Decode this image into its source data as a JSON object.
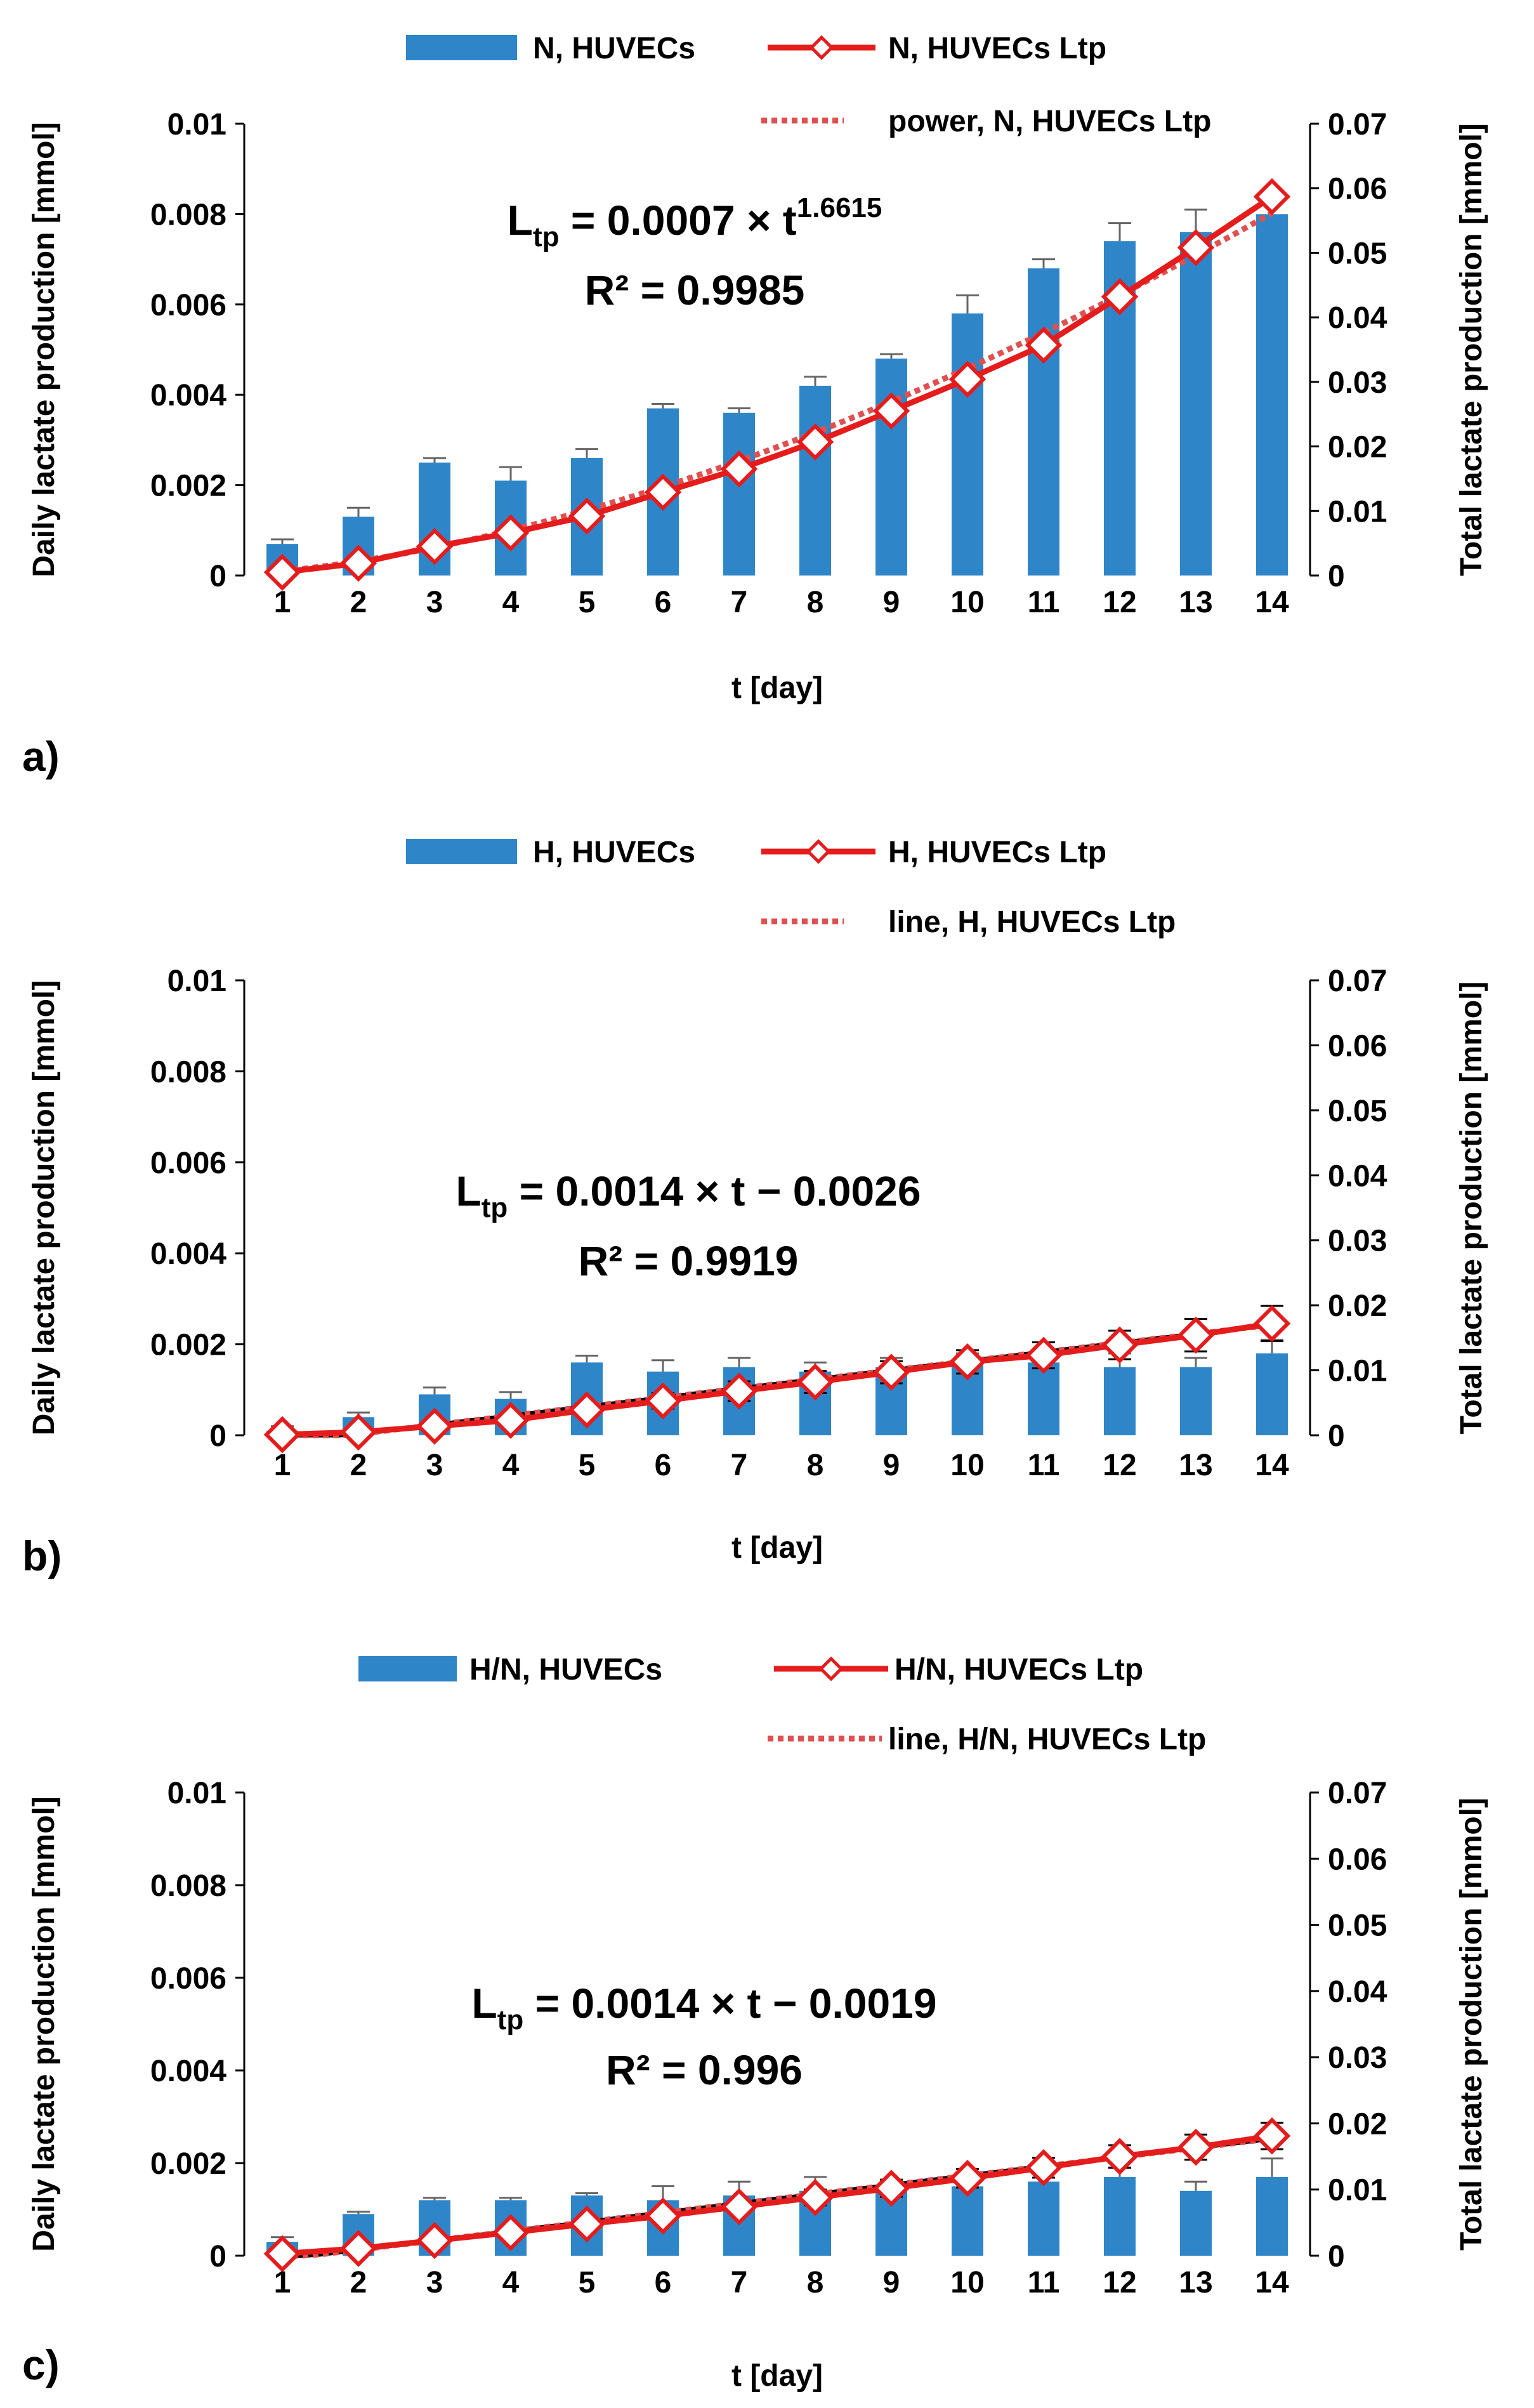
{
  "figure": {
    "panels": [
      {
        "panel_label": "a)",
        "chart_data": {
          "type": "bar",
          "title": "",
          "xlabel": "t [day]",
          "ylabel_left": "Daily lactate production [mmol]",
          "ylabel_right": "Total lactate production [mmol]",
          "categories": [
            "1",
            "2",
            "3",
            "4",
            "5",
            "6",
            "7",
            "8",
            "9",
            "10",
            "11",
            "12",
            "13",
            "14"
          ],
          "ylim_left": [
            0,
            0.01
          ],
          "yticks_left": [
            "0",
            "0.002",
            "0.004",
            "0.006",
            "0.008",
            "0.01"
          ],
          "ylim_right": [
            0,
            0.07
          ],
          "yticks_right": [
            "0",
            "0.01",
            "0.02",
            "0.03",
            "0.04",
            "0.05",
            "0.06",
            "0.07"
          ],
          "grid": false,
          "legend_position": "top",
          "series": [
            {
              "name": "N, HUVECs",
              "kind": "bar",
              "axis": "left",
              "color": "#2e86c8",
              "values": [
                0.0007,
                0.0013,
                0.0025,
                0.0021,
                0.0026,
                0.0037,
                0.0036,
                0.0042,
                0.0048,
                0.0058,
                0.0068,
                0.0074,
                0.0076,
                0.008
              ],
              "errors": [
                0.0001,
                0.0002,
                0.0001,
                0.0003,
                0.0002,
                0.0001,
                0.0001,
                0.0002,
                0.0001,
                0.0004,
                0.0002,
                0.0004,
                0.0005,
                0.0003
              ]
            },
            {
              "name": "N, HUVECs Ltp",
              "kind": "line",
              "axis": "right",
              "color": "#e51c1c",
              "values": [
                0.0005,
                0.0019,
                0.0045,
                0.0066,
                0.0092,
                0.0129,
                0.0165,
                0.0207,
                0.0255,
                0.0304,
                0.0357,
                0.0432,
                0.0508,
                0.0587
              ],
              "errors": [
                0,
                0,
                0,
                0,
                0,
                0,
                0,
                0,
                0,
                0,
                0,
                0,
                0,
                0
              ]
            },
            {
              "name": "power, N, HUVECs Ltp",
              "kind": "trend",
              "axis": "right",
              "color": "#e05050",
              "trend": {
                "type": "power",
                "a": 0.0007,
                "b": 1.6615
              }
            }
          ],
          "annotation": {
            "lhs": "L",
            "lhs_sub": "tp",
            "expr": " = 0.0007 × t",
            "expr_sup": "1.6615",
            "r2": "R² = 0.9985"
          }
        }
      },
      {
        "panel_label": "b)",
        "chart_data": {
          "type": "bar",
          "title": "",
          "xlabel": "t [day]",
          "ylabel_left": "Daily lactate production [mmol]",
          "ylabel_right": "Total lactate production [mmol]",
          "categories": [
            "1",
            "2",
            "3",
            "4",
            "5",
            "6",
            "7",
            "8",
            "9",
            "10",
            "11",
            "12",
            "13",
            "14"
          ],
          "ylim_left": [
            0,
            0.01
          ],
          "yticks_left": [
            "0",
            "0.002",
            "0.004",
            "0.006",
            "0.008",
            "0.01"
          ],
          "ylim_right": [
            0,
            0.07
          ],
          "yticks_right": [
            "0",
            "0.01",
            "0.02",
            "0.03",
            "0.04",
            "0.05",
            "0.06",
            "0.07"
          ],
          "grid": false,
          "legend_position": "top",
          "series": [
            {
              "name": "H, HUVECs",
              "kind": "bar",
              "axis": "left",
              "color": "#2e86c8",
              "values": [
                0.0001,
                0.0004,
                0.0009,
                0.0008,
                0.0016,
                0.0014,
                0.0015,
                0.0014,
                0.0015,
                0.0016,
                0.0016,
                0.0015,
                0.0015,
                0.0018
              ],
              "errors": [
                0.0001,
                0.0001,
                0.00015,
                0.00015,
                0.00015,
                0.00025,
                0.0002,
                0.0002,
                0.0002,
                0.0002,
                0.00015,
                0.0003,
                0.0002,
                0.0003
              ]
            },
            {
              "name": "H, HUVECs Ltp",
              "kind": "line",
              "axis": "right",
              "color": "#e51c1c",
              "values": [
                0.0001,
                0.0005,
                0.0014,
                0.0023,
                0.0039,
                0.0053,
                0.0068,
                0.0082,
                0.0097,
                0.0113,
                0.0123,
                0.0139,
                0.0154,
                0.0172
              ],
              "errors": [
                0.0001,
                0.0003,
                0.0006,
                0.0008,
                0.001,
                0.0012,
                0.0015,
                0.0017,
                0.0017,
                0.0018,
                0.002,
                0.0022,
                0.0025,
                0.0027
              ]
            },
            {
              "name": "line, H, HUVECs Ltp",
              "kind": "trend",
              "axis": "right",
              "color": "#e05050",
              "trend": {
                "type": "linear",
                "a": 0.0014,
                "b": -0.0026
              }
            }
          ],
          "annotation": {
            "lhs": "L",
            "lhs_sub": "tp",
            "expr": "  = 0.0014 × t − 0.0026",
            "expr_sup": "",
            "r2": "R² = 0.9919"
          }
        }
      },
      {
        "panel_label": "c)",
        "chart_data": {
          "type": "bar",
          "title": "",
          "xlabel": "t [day]",
          "ylabel_left": "Daily lactate production [mmol]",
          "ylabel_right": "Total lactate production [mmol]",
          "categories": [
            "1",
            "2",
            "3",
            "4",
            "5",
            "6",
            "7",
            "8",
            "9",
            "10",
            "11",
            "12",
            "13",
            "14"
          ],
          "ylim_left": [
            0,
            0.01
          ],
          "yticks_left": [
            "0",
            "0.002",
            "0.004",
            "0.006",
            "0.008",
            "0.01"
          ],
          "ylim_right": [
            0,
            0.07
          ],
          "yticks_right": [
            "0",
            "0.01",
            "0.02",
            "0.03",
            "0.04",
            "0.05",
            "0.06",
            "0.07"
          ],
          "grid": false,
          "legend_position": "top",
          "series": [
            {
              "name": "H/N, HUVECs",
              "kind": "bar",
              "axis": "left",
              "color": "#2e86c8",
              "values": [
                0.0003,
                0.0009,
                0.0012,
                0.0012,
                0.0013,
                0.0012,
                0.0013,
                0.0014,
                0.0014,
                0.0015,
                0.0016,
                0.0017,
                0.0014,
                0.0017
              ],
              "errors": [
                0.0001,
                5e-05,
                5e-05,
                5e-05,
                5e-05,
                0.0003,
                0.0003,
                0.0003,
                0.0002,
                0.0002,
                0.0002,
                0.0002,
                0.0002,
                0.0004
              ]
            },
            {
              "name": "H/N, HUVECs Ltp",
              "kind": "line",
              "axis": "right",
              "color": "#e51c1c",
              "values": [
                0.0003,
                0.0011,
                0.0023,
                0.0035,
                0.0048,
                0.006,
                0.0074,
                0.0088,
                0.0102,
                0.0117,
                0.0133,
                0.015,
                0.0164,
                0.0181
              ],
              "errors": [
                0.0001,
                0.0002,
                0.0003,
                0.0005,
                0.0007,
                0.0009,
                0.001,
                0.0012,
                0.0013,
                0.0014,
                0.0015,
                0.0017,
                0.0019,
                0.002
              ]
            },
            {
              "name": "line, H/N, HUVECs Ltp",
              "kind": "trend",
              "axis": "right",
              "color": "#e05050",
              "trend": {
                "type": "linear",
                "a": 0.0014,
                "b": -0.0019
              }
            }
          ],
          "annotation": {
            "lhs": "L",
            "lhs_sub": "tp",
            "expr": "  = 0.0014 × t − 0.0019",
            "expr_sup": "",
            "r2": "R² = 0.996"
          }
        }
      }
    ]
  }
}
